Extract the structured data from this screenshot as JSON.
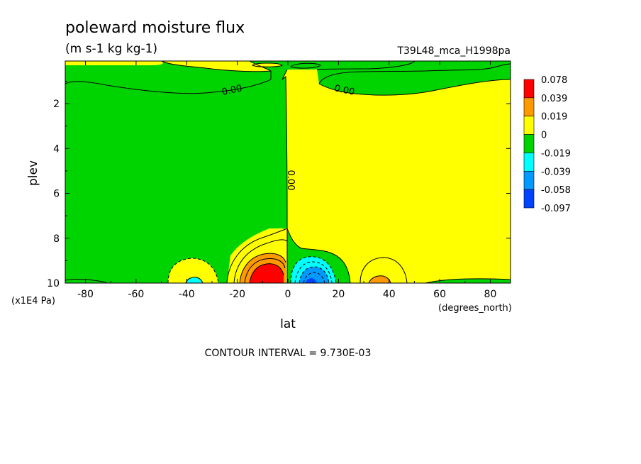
{
  "chart_data": {
    "type": "heatmap",
    "title": "poleward moisture flux",
    "subtitle": "(m s-1 kg kg-1)",
    "run_label": "T39L48_mca_H1998pa",
    "xlabel": "lat",
    "xunit": "(degrees_north)",
    "ylabel": "plev",
    "yunit": "(x1E4 Pa)",
    "xlim": [
      -88,
      88
    ],
    "ylim": [
      10,
      0.1
    ],
    "xticks": [
      -80,
      -60,
      -40,
      -20,
      0,
      20,
      40,
      60,
      80
    ],
    "yticks": [
      2,
      4,
      6,
      8,
      10
    ],
    "footer": "CONTOUR INTERVAL = 9.730E-03",
    "contour_labels": [
      "0.00",
      "0.00",
      "0.00"
    ],
    "legend": {
      "placement": "right",
      "levels": [
        "0.078",
        "0.039",
        "0.019",
        "0",
        "-0.019",
        "-0.039",
        "-0.058",
        "-0.097"
      ],
      "colors": [
        "#ff0000",
        "#ff9900",
        "#ffff00",
        "#00d400",
        "#00ffff",
        "#0099ff",
        "#0044ff"
      ]
    },
    "colors": {
      "positive_strong": "#ff0000",
      "positive_mid": "#ff9900",
      "positive_weak": "#ffff00",
      "negative_weak": "#00d400",
      "negative_mid": "#00ffff",
      "negative_strong": "#0099ff"
    }
  }
}
